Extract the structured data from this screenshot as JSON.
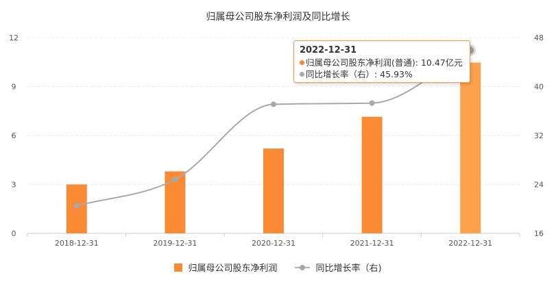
{
  "chart_data": {
    "type": "bar",
    "title": "归属母公司股东净利润及同比增长",
    "categories": [
      "2018-12-31",
      "2019-12-31",
      "2020-12-31",
      "2021-12-31",
      "2022-12-31"
    ],
    "series": [
      {
        "name": "归属母公司股东净利润",
        "type": "bar",
        "axis": "left",
        "values": [
          3.0,
          3.8,
          5.2,
          7.15,
          10.47
        ],
        "color": "#fa8a34",
        "highlight_color": "#fca14c"
      },
      {
        "name": "同比增长率（右）",
        "type": "line",
        "axis": "right",
        "values": [
          20.5,
          24.8,
          37.1,
          37.3,
          45.93
        ],
        "color": "#a8a8a8"
      }
    ],
    "y_left": {
      "ylim": [
        0,
        12
      ],
      "ticks": [
        "0",
        "3",
        "6",
        "9",
        "12"
      ]
    },
    "y_right": {
      "ylim": [
        16,
        48
      ],
      "ticks": [
        "16",
        "24",
        "32",
        "40",
        "48"
      ]
    },
    "highlight_index": 4,
    "grid": true,
    "legend": "bottom-center"
  },
  "tooltip": {
    "date": "2022-12-31",
    "row1": "归属母公司股东净利润(普通): 10.47亿元",
    "row2": "同比增长率（右）: 45.93%",
    "color1": "#fa8a34",
    "color2": "#a8a8a8"
  },
  "legend": {
    "bar_label": "归属母公司股东净利润",
    "line_label": "同比增长率（右)"
  }
}
